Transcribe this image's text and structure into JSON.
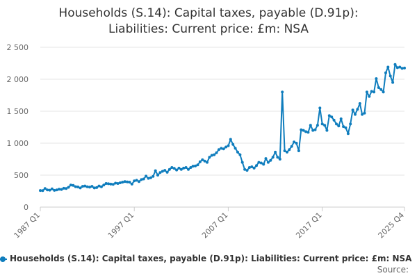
{
  "chart_data": {
    "type": "line",
    "title_lines": [
      "Households (S.14): Capital taxes, payable (D.91p):",
      "Liabilities: Current price: £m: NSA"
    ],
    "xlabel": "",
    "ylabel": "",
    "x_tick_labels": [
      "1987 Q1",
      "1997 Q1",
      "2007 Q1",
      "2017 Q1",
      "2025 Q4"
    ],
    "x_tick_positions": [
      1987.0,
      1997.0,
      2007.0,
      2017.0,
      2025.75
    ],
    "x_range": [
      1987.0,
      2025.75
    ],
    "y_tick_labels": [
      "0",
      "500",
      "1 000",
      "1 500",
      "2 000",
      "2 500"
    ],
    "y_tick_values": [
      0,
      500,
      1000,
      1500,
      2000,
      2500
    ],
    "ylim": [
      0,
      2500
    ],
    "grid": "horizontal",
    "legend_position": "bottom",
    "series": [
      {
        "name": "Households (S.14): Capital taxes, payable (D.91p): Liabilities: Current price: £m: NSA",
        "color": "#0f7dbd",
        "points": [
          [
            1987.0,
            260
          ],
          [
            1987.25,
            258
          ],
          [
            1987.5,
            290
          ],
          [
            1987.75,
            270
          ],
          [
            1988.0,
            265
          ],
          [
            1988.25,
            285
          ],
          [
            1988.5,
            262
          ],
          [
            1988.75,
            270
          ],
          [
            1989.0,
            280
          ],
          [
            1989.25,
            276
          ],
          [
            1989.5,
            295
          ],
          [
            1989.75,
            290
          ],
          [
            1990.0,
            310
          ],
          [
            1990.25,
            345
          ],
          [
            1990.5,
            340
          ],
          [
            1990.75,
            320
          ],
          [
            1991.0,
            315
          ],
          [
            1991.25,
            300
          ],
          [
            1991.5,
            325
          ],
          [
            1991.75,
            330
          ],
          [
            1992.0,
            318
          ],
          [
            1992.25,
            312
          ],
          [
            1992.5,
            325
          ],
          [
            1992.75,
            300
          ],
          [
            1993.0,
            305
          ],
          [
            1993.25,
            330
          ],
          [
            1993.5,
            318
          ],
          [
            1993.75,
            345
          ],
          [
            1994.0,
            370
          ],
          [
            1994.25,
            365
          ],
          [
            1994.5,
            360
          ],
          [
            1994.75,
            355
          ],
          [
            1995.0,
            375
          ],
          [
            1995.25,
            370
          ],
          [
            1995.5,
            380
          ],
          [
            1995.75,
            390
          ],
          [
            1996.0,
            400
          ],
          [
            1996.25,
            395
          ],
          [
            1996.5,
            390
          ],
          [
            1996.75,
            360
          ],
          [
            1997.0,
            410
          ],
          [
            1997.25,
            420
          ],
          [
            1997.5,
            400
          ],
          [
            1997.75,
            430
          ],
          [
            1998.0,
            440
          ],
          [
            1998.25,
            485
          ],
          [
            1998.5,
            450
          ],
          [
            1998.75,
            460
          ],
          [
            1999.0,
            480
          ],
          [
            1999.25,
            570
          ],
          [
            1999.5,
            500
          ],
          [
            1999.75,
            540
          ],
          [
            2000.0,
            560
          ],
          [
            2000.25,
            575
          ],
          [
            2000.5,
            545
          ],
          [
            2000.75,
            590
          ],
          [
            2001.0,
            620
          ],
          [
            2001.25,
            605
          ],
          [
            2001.5,
            580
          ],
          [
            2001.75,
            610
          ],
          [
            2002.0,
            590
          ],
          [
            2002.25,
            610
          ],
          [
            2002.5,
            620
          ],
          [
            2002.75,
            590
          ],
          [
            2003.0,
            620
          ],
          [
            2003.25,
            640
          ],
          [
            2003.5,
            645
          ],
          [
            2003.75,
            660
          ],
          [
            2004.0,
            710
          ],
          [
            2004.25,
            740
          ],
          [
            2004.5,
            720
          ],
          [
            2004.75,
            700
          ],
          [
            2005.0,
            780
          ],
          [
            2005.25,
            810
          ],
          [
            2005.5,
            820
          ],
          [
            2005.75,
            850
          ],
          [
            2006.0,
            900
          ],
          [
            2006.25,
            920
          ],
          [
            2006.5,
            910
          ],
          [
            2006.75,
            940
          ],
          [
            2007.0,
            960
          ],
          [
            2007.25,
            1060
          ],
          [
            2007.5,
            980
          ],
          [
            2007.75,
            920
          ],
          [
            2008.0,
            860
          ],
          [
            2008.25,
            820
          ],
          [
            2008.5,
            700
          ],
          [
            2008.75,
            590
          ],
          [
            2009.0,
            575
          ],
          [
            2009.25,
            620
          ],
          [
            2009.5,
            630
          ],
          [
            2009.75,
            610
          ],
          [
            2010.0,
            650
          ],
          [
            2010.25,
            700
          ],
          [
            2010.5,
            690
          ],
          [
            2010.75,
            670
          ],
          [
            2011.0,
            760
          ],
          [
            2011.25,
            700
          ],
          [
            2011.5,
            730
          ],
          [
            2011.75,
            780
          ],
          [
            2012.0,
            860
          ],
          [
            2012.25,
            780
          ],
          [
            2012.5,
            750
          ],
          [
            2012.75,
            1800
          ],
          [
            2013.0,
            880
          ],
          [
            2013.25,
            860
          ],
          [
            2013.5,
            900
          ],
          [
            2013.75,
            950
          ],
          [
            2014.0,
            1020
          ],
          [
            2014.25,
            1000
          ],
          [
            2014.5,
            880
          ],
          [
            2014.75,
            1210
          ],
          [
            2015.0,
            1200
          ],
          [
            2015.25,
            1180
          ],
          [
            2015.5,
            1170
          ],
          [
            2015.75,
            1280
          ],
          [
            2016.0,
            1200
          ],
          [
            2016.25,
            1210
          ],
          [
            2016.5,
            1280
          ],
          [
            2016.75,
            1550
          ],
          [
            2017.0,
            1300
          ],
          [
            2017.25,
            1280
          ],
          [
            2017.5,
            1200
          ],
          [
            2017.75,
            1430
          ],
          [
            2018.0,
            1410
          ],
          [
            2018.25,
            1360
          ],
          [
            2018.5,
            1300
          ],
          [
            2018.75,
            1270
          ],
          [
            2019.0,
            1380
          ],
          [
            2019.25,
            1260
          ],
          [
            2019.5,
            1240
          ],
          [
            2019.75,
            1150
          ],
          [
            2020.0,
            1300
          ],
          [
            2020.25,
            1520
          ],
          [
            2020.5,
            1450
          ],
          [
            2020.75,
            1530
          ],
          [
            2021.0,
            1620
          ],
          [
            2021.25,
            1450
          ],
          [
            2021.5,
            1470
          ],
          [
            2021.75,
            1800
          ],
          [
            2022.0,
            1730
          ],
          [
            2022.25,
            1810
          ],
          [
            2022.5,
            1800
          ],
          [
            2022.75,
            2010
          ],
          [
            2023.0,
            1870
          ],
          [
            2023.25,
            1840
          ],
          [
            2023.5,
            1800
          ],
          [
            2023.75,
            2100
          ],
          [
            2024.0,
            2190
          ],
          [
            2024.25,
            2050
          ],
          [
            2024.5,
            1950
          ],
          [
            2024.75,
            2230
          ],
          [
            2025.0,
            2180
          ],
          [
            2025.25,
            2190
          ],
          [
            2025.5,
            2170
          ],
          [
            2025.75,
            2175
          ]
        ]
      }
    ],
    "source_label": "Source:"
  }
}
